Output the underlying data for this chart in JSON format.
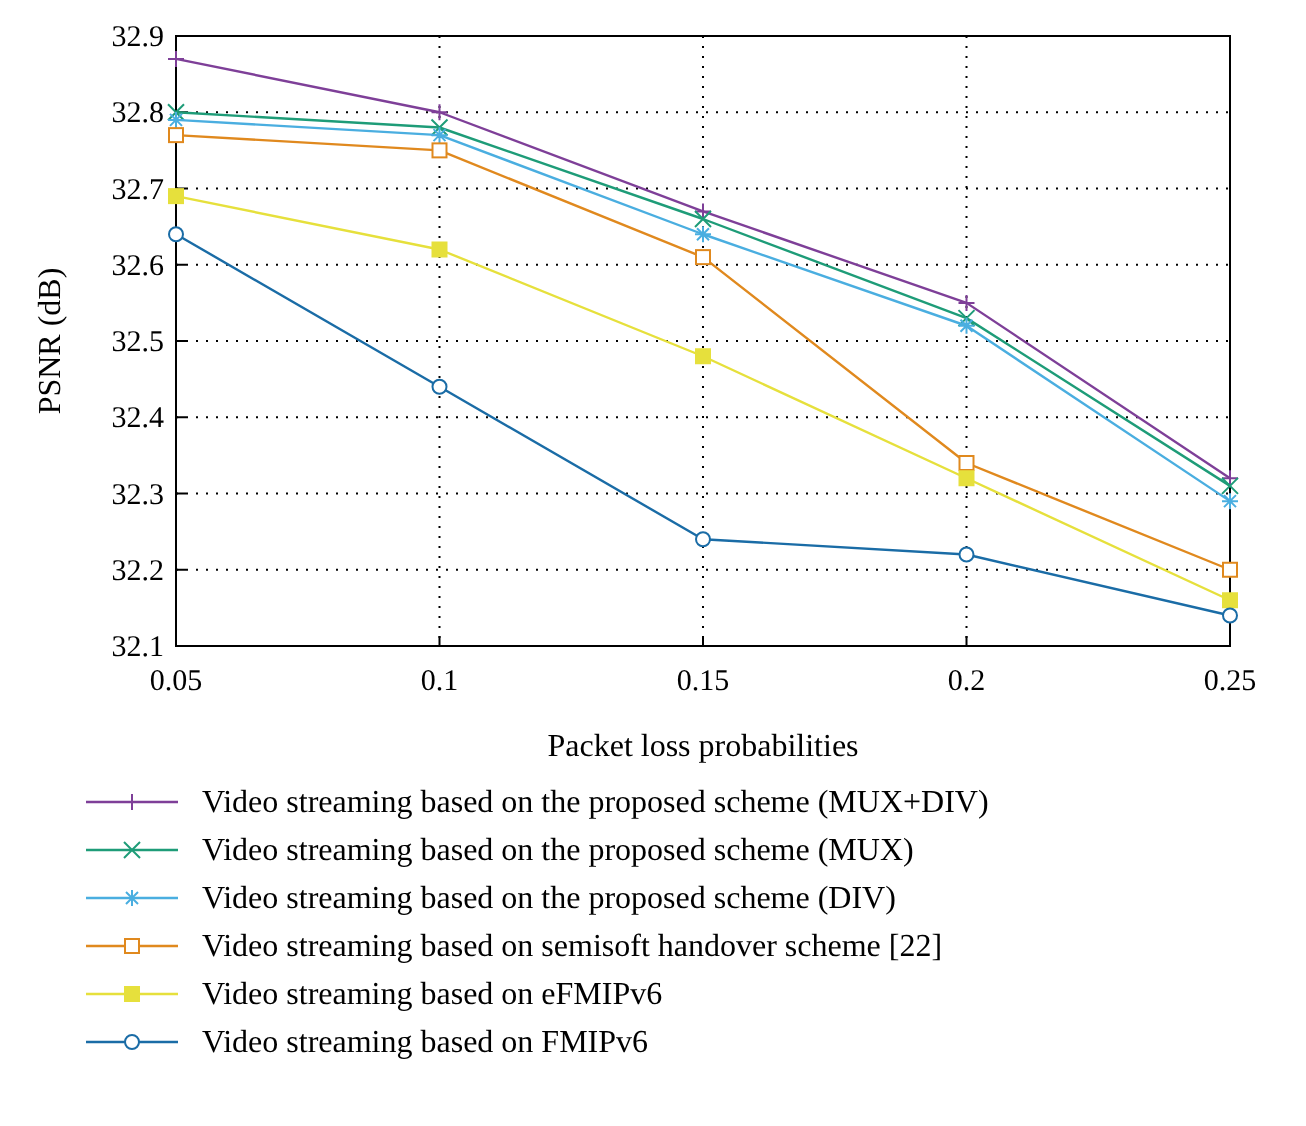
{
  "chart_data": {
    "type": "line",
    "xlabel": "Packet loss probabilities",
    "ylabel": "PSNR (dB)",
    "x": [
      0.05,
      0.1,
      0.15,
      0.2,
      0.25
    ],
    "xlim": [
      0.05,
      0.25
    ],
    "xticks": [
      0.05,
      0.1,
      0.15,
      0.2,
      0.25
    ],
    "ylim": [
      32.1,
      32.9
    ],
    "yticks": [
      32.1,
      32.2,
      32.3,
      32.4,
      32.5,
      32.6,
      32.7,
      32.8,
      32.9
    ],
    "grid": true,
    "legend": "bottom",
    "line_style": "solid",
    "series": [
      {
        "name": "Video streaming based on the proposed scheme (MUX+DIV)",
        "color": "#7e3f98",
        "marker": "plus",
        "values": [
          32.87,
          32.8,
          32.67,
          32.55,
          32.32
        ]
      },
      {
        "name": "Video streaming based on the proposed scheme (MUX)",
        "color": "#1e9c78",
        "marker": "x",
        "values": [
          32.8,
          32.78,
          32.66,
          32.53,
          32.31
        ]
      },
      {
        "name": "Video streaming based on the proposed scheme (DIV)",
        "color": "#4aaee0",
        "marker": "cross",
        "values": [
          32.79,
          32.77,
          32.64,
          32.52,
          32.29
        ]
      },
      {
        "name": "Video streaming based on semisoft handover scheme [22]",
        "color": "#e0891e",
        "marker": "square",
        "values": [
          32.77,
          32.75,
          32.61,
          32.34,
          32.2
        ]
      },
      {
        "name": "Video streaming based on eFMIPv6",
        "color": "#e6e03c",
        "marker": "square-filled",
        "values": [
          32.69,
          32.62,
          32.48,
          32.32,
          32.16
        ]
      },
      {
        "name": "Video streaming based on FMIPv6",
        "color": "#1a6ca6",
        "marker": "circle",
        "values": [
          32.64,
          32.44,
          32.24,
          32.22,
          32.14
        ]
      }
    ]
  }
}
